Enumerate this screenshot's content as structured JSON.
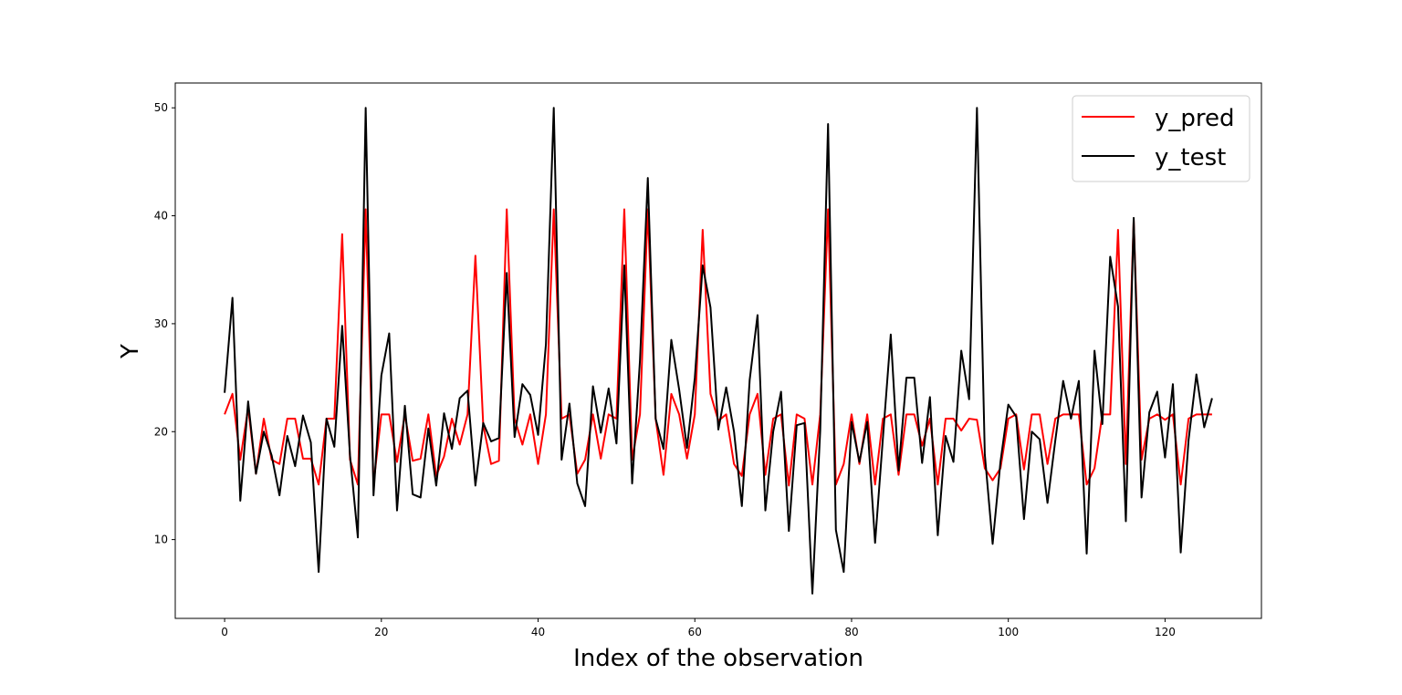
{
  "chart_data": {
    "type": "line",
    "title": "",
    "xlabel": "Index of the observation",
    "ylabel": "Y",
    "xlim": [
      -6.3,
      132.3
    ],
    "ylim": [
      2.7,
      52.3
    ],
    "xticks": [
      0,
      20,
      40,
      60,
      80,
      100,
      120
    ],
    "yticks": [
      10,
      20,
      30,
      40,
      50
    ],
    "grid": false,
    "legend_position": "top-right",
    "x": [
      0,
      1,
      2,
      3,
      4,
      5,
      6,
      7,
      8,
      9,
      10,
      11,
      12,
      13,
      14,
      15,
      16,
      17,
      18,
      19,
      20,
      21,
      22,
      23,
      24,
      25,
      26,
      27,
      28,
      29,
      30,
      31,
      32,
      33,
      34,
      35,
      36,
      37,
      38,
      39,
      40,
      41,
      42,
      43,
      44,
      45,
      46,
      47,
      48,
      49,
      50,
      51,
      52,
      53,
      54,
      55,
      56,
      57,
      58,
      59,
      60,
      61,
      62,
      63,
      64,
      65,
      66,
      67,
      68,
      69,
      70,
      71,
      72,
      73,
      74,
      75,
      76,
      77,
      78,
      79,
      80,
      81,
      82,
      83,
      84,
      85,
      86,
      87,
      88,
      89,
      90,
      91,
      92,
      93,
      94,
      95,
      96,
      97,
      98,
      99,
      100,
      101,
      102,
      103,
      104,
      105,
      106,
      107,
      108,
      109,
      110,
      111,
      112,
      113,
      114,
      115,
      116,
      117,
      118,
      119,
      120,
      121,
      122,
      123,
      124,
      125,
      126
    ],
    "series": [
      {
        "name": "y_pred",
        "color": "#ff0000",
        "values": [
          21.6,
          23.5,
          17.4,
          22.2,
          16.1,
          21.2,
          17.4,
          17.0,
          21.2,
          21.2,
          17.5,
          17.5,
          15.1,
          21.2,
          21.2,
          38.3,
          17.4,
          15.1,
          40.6,
          15.1,
          21.6,
          21.6,
          17.2,
          21.6,
          17.3,
          17.5,
          21.6,
          15.9,
          17.7,
          21.2,
          18.8,
          21.6,
          36.3,
          20.6,
          17.0,
          17.3,
          40.6,
          21.2,
          18.8,
          21.6,
          17.0,
          21.6,
          40.6,
          21.2,
          21.6,
          16.1,
          17.4,
          21.6,
          17.5,
          21.6,
          21.2,
          40.6,
          17.4,
          21.6,
          40.6,
          21.2,
          16.0,
          23.5,
          21.6,
          17.5,
          21.6,
          38.7,
          23.5,
          21.0,
          21.6,
          17.0,
          15.9,
          21.6,
          23.5,
          16.0,
          21.2,
          21.6,
          15.0,
          21.6,
          21.2,
          15.1,
          21.6,
          40.6,
          15.1,
          17.0,
          21.6,
          17.0,
          21.6,
          15.1,
          21.2,
          21.6,
          16.0,
          21.6,
          21.6,
          18.7,
          21.2,
          15.1,
          21.2,
          21.2,
          20.1,
          21.2,
          21.1,
          16.6,
          15.5,
          16.6,
          21.2,
          21.6,
          16.5,
          21.6,
          21.6,
          17.0,
          21.2,
          21.6,
          21.6,
          21.6,
          15.1,
          16.6,
          21.6,
          21.6,
          38.7,
          17.0,
          39.6,
          17.4,
          21.2,
          21.6,
          21.1,
          21.6,
          15.1,
          21.2,
          21.6,
          21.6,
          21.6
        ]
      },
      {
        "name": "y_test",
        "color": "#000000",
        "values": [
          23.6,
          32.4,
          13.6,
          22.8,
          16.1,
          20.0,
          17.8,
          14.1,
          19.6,
          16.8,
          21.5,
          19.0,
          7.0,
          21.2,
          18.6,
          29.8,
          17.8,
          10.2,
          50.0,
          14.1,
          25.2,
          29.1,
          12.7,
          22.4,
          14.2,
          13.9,
          20.3,
          15.0,
          21.7,
          18.4,
          23.1,
          23.8,
          15.0,
          20.8,
          19.1,
          19.4,
          34.7,
          19.5,
          24.4,
          23.4,
          19.7,
          28.1,
          50.0,
          17.4,
          22.6,
          15.2,
          13.1,
          24.2,
          19.9,
          24.0,
          18.9,
          35.4,
          15.2,
          26.6,
          43.5,
          21.2,
          18.4,
          28.5,
          23.9,
          18.5,
          25.0,
          35.4,
          31.5,
          20.2,
          24.1,
          20.0,
          13.1,
          24.8,
          30.8,
          12.7,
          20.0,
          23.7,
          10.8,
          20.6,
          20.8,
          5.0,
          20.1,
          48.5,
          10.9,
          7.0,
          20.9,
          17.2,
          20.9,
          9.7,
          19.4,
          29.0,
          16.4,
          25.0,
          25.0,
          17.1,
          23.2,
          10.4,
          19.6,
          17.2,
          27.5,
          23.0,
          50.0,
          17.9,
          9.6,
          17.2,
          22.5,
          21.4,
          11.9,
          20.0,
          19.3,
          13.4,
          19.2,
          24.7,
          21.2,
          24.7,
          8.7,
          27.5,
          20.7,
          36.2,
          31.6,
          11.7,
          39.8,
          13.9,
          21.8,
          23.7,
          17.6,
          24.4,
          8.8,
          19.2,
          25.3,
          20.4,
          23.1
        ]
      }
    ]
  }
}
